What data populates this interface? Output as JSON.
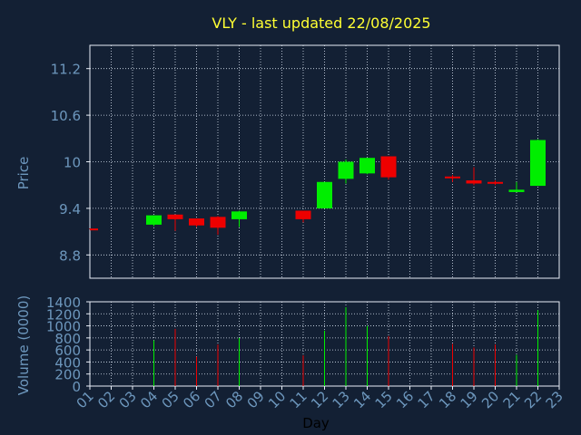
{
  "colors": {
    "background": "#132034",
    "frame": "#e8eef7",
    "grid": "#d8e2ef",
    "title": "#ffff33",
    "tick_text": "#6d97bd",
    "up": "#00ee00",
    "down": "#ee0000"
  },
  "chart_data": [
    {
      "type": "candlestick",
      "title": "VLY - last updated 22/08/2025",
      "xlabel": "",
      "ylabel": "Price",
      "ylim": [
        8.5,
        11.5
      ],
      "yticks": [
        "8.8",
        "9.4",
        "10",
        "10.6",
        "11.2"
      ],
      "grid": true,
      "series": [
        {
          "day": "01",
          "open": 9.14,
          "close": 9.13,
          "high": 9.14,
          "low": 9.13
        },
        {
          "day": "04",
          "open": 9.19,
          "close": 9.31,
          "high": 9.31,
          "low": 9.17
        },
        {
          "day": "05",
          "open": 9.32,
          "close": 9.26,
          "high": 9.32,
          "low": 9.11
        },
        {
          "day": "06",
          "open": 9.27,
          "close": 9.18,
          "high": 9.27,
          "low": 9.16
        },
        {
          "day": "07",
          "open": 9.29,
          "close": 9.15,
          "high": 9.3,
          "low": 9.06
        },
        {
          "day": "08",
          "open": 9.26,
          "close": 9.36,
          "high": 9.37,
          "low": 9.16
        },
        {
          "day": "11",
          "open": 9.37,
          "close": 9.26,
          "high": 9.37,
          "low": 9.22
        },
        {
          "day": "12",
          "open": 9.4,
          "close": 9.74,
          "high": 9.74,
          "low": 9.4
        },
        {
          "day": "13",
          "open": 9.78,
          "close": 10.0,
          "high": 10.03,
          "low": 9.72
        },
        {
          "day": "14",
          "open": 9.85,
          "close": 10.05,
          "high": 10.05,
          "low": 9.84
        },
        {
          "day": "15",
          "open": 10.07,
          "close": 9.8,
          "high": 10.07,
          "low": 9.77
        },
        {
          "day": "18",
          "open": 9.81,
          "close": 9.79,
          "high": 9.83,
          "low": 9.74
        },
        {
          "day": "19",
          "open": 9.76,
          "close": 9.72,
          "high": 9.93,
          "low": 9.7
        },
        {
          "day": "20",
          "open": 9.74,
          "close": 9.72,
          "high": 9.76,
          "low": 9.7
        },
        {
          "day": "21",
          "open": 9.61,
          "close": 9.64,
          "high": 9.74,
          "low": 9.61
        },
        {
          "day": "22",
          "open": 9.69,
          "close": 10.28,
          "high": 10.29,
          "low": 9.69
        }
      ]
    },
    {
      "type": "bar",
      "xlabel": "Day",
      "ylabel": "Volume (0000)",
      "ylim": [
        0,
        1400
      ],
      "yticks": [
        "0",
        "200",
        "400",
        "600",
        "800",
        "1000",
        "1200",
        "1400"
      ],
      "grid": true,
      "categories": [
        "01",
        "02",
        "03",
        "04",
        "05",
        "06",
        "07",
        "08",
        "09",
        "10",
        "11",
        "12",
        "13",
        "14",
        "15",
        "16",
        "17",
        "18",
        "19",
        "20",
        "21",
        "22",
        "23"
      ],
      "bars": [
        {
          "day": "04",
          "value": 760,
          "direction": "up"
        },
        {
          "day": "05",
          "value": 950,
          "direction": "down"
        },
        {
          "day": "06",
          "value": 490,
          "direction": "down"
        },
        {
          "day": "07",
          "value": 690,
          "direction": "down"
        },
        {
          "day": "08",
          "value": 800,
          "direction": "up"
        },
        {
          "day": "11",
          "value": 510,
          "direction": "down"
        },
        {
          "day": "12",
          "value": 920,
          "direction": "up"
        },
        {
          "day": "13",
          "value": 1310,
          "direction": "up"
        },
        {
          "day": "14",
          "value": 1000,
          "direction": "up"
        },
        {
          "day": "15",
          "value": 830,
          "direction": "down"
        },
        {
          "day": "18",
          "value": 700,
          "direction": "down"
        },
        {
          "day": "19",
          "value": 640,
          "direction": "down"
        },
        {
          "day": "20",
          "value": 690,
          "direction": "down"
        },
        {
          "day": "21",
          "value": 520,
          "direction": "up"
        },
        {
          "day": "22",
          "value": 1260,
          "direction": "up"
        }
      ]
    }
  ]
}
